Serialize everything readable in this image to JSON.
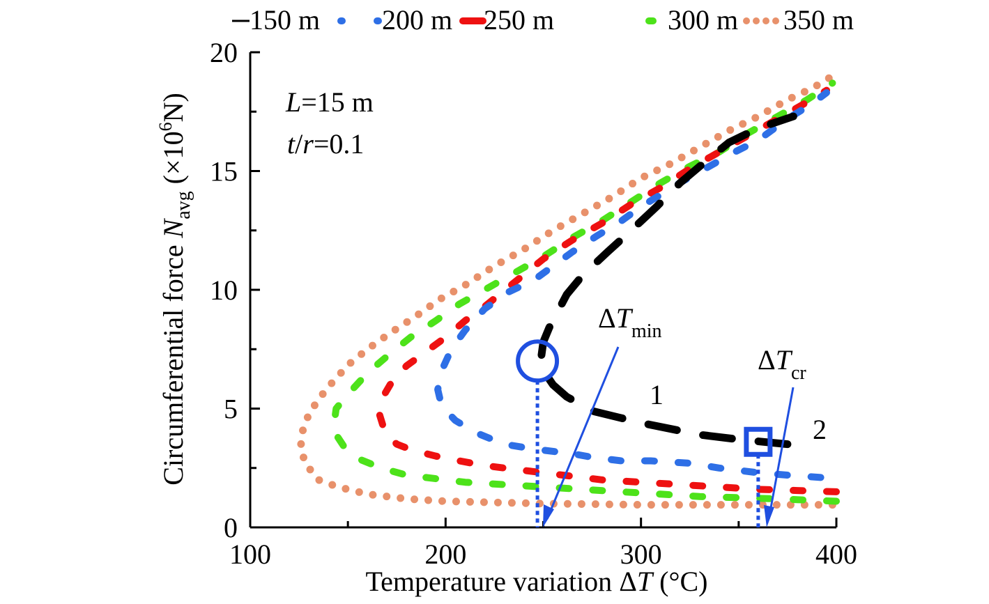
{
  "chart_data": {
    "type": "line",
    "title": "",
    "xlabel": "Temperature variation ΔT (°C)",
    "xlabel_parts": {
      "main": "Temperature variation ",
      "delta": "Δ",
      "var": "T",
      "unit": " (°C)"
    },
    "ylabel": "Circumferential force N_avg (×10^6N)",
    "ylabel_parts": {
      "main": "Circumferential force ",
      "var": "N",
      "sub": "avg",
      "unit_open": " (×10",
      "sup": "6",
      "unit_close": "N)"
    },
    "xlim": [
      100,
      400
    ],
    "ylim": [
      0,
      20
    ],
    "x_ticks": [
      "100",
      "200",
      "300",
      "400"
    ],
    "x_tick_values": [
      100,
      200,
      300,
      400
    ],
    "x_minor_ticks": [
      150,
      250,
      350
    ],
    "y_ticks": [
      "0",
      "5",
      "10",
      "15",
      "20"
    ],
    "y_tick_values": [
      0,
      5,
      10,
      15,
      20
    ],
    "y_minor_ticks": [
      2.5,
      7.5,
      12.5,
      17.5
    ],
    "grid": false,
    "legend_position": "top",
    "series": [
      {
        "name": "150 m",
        "color": "#000000",
        "style": "long-dash",
        "points": [
          [
            375,
            3.5
          ],
          [
            350,
            3.7
          ],
          [
            330,
            3.9
          ],
          [
            300,
            4.4
          ],
          [
            275,
            4.9
          ],
          [
            262,
            5.5
          ],
          [
            255,
            6.0
          ],
          [
            250,
            6.6
          ],
          [
            249,
            7.2
          ],
          [
            250,
            7.8
          ],
          [
            253,
            8.4
          ],
          [
            262,
            9.8
          ],
          [
            270,
            10.6
          ],
          [
            283,
            11.6
          ],
          [
            295,
            12.5
          ],
          [
            308,
            13.5
          ],
          [
            320,
            14.5
          ],
          [
            333,
            15.4
          ],
          [
            345,
            16.2
          ],
          [
            360,
            16.8
          ],
          [
            378,
            17.3
          ]
        ]
      },
      {
        "name": "200 m",
        "color": "#2e6fe6",
        "style": "dash",
        "points": [
          [
            392,
            2.1
          ],
          [
            375,
            2.2
          ],
          [
            360,
            2.3
          ],
          [
            340,
            2.5
          ],
          [
            325,
            2.7
          ],
          [
            305,
            2.8
          ],
          [
            290,
            2.8
          ],
          [
            275,
            2.95
          ],
          [
            265,
            3.1
          ],
          [
            245,
            3.3
          ],
          [
            230,
            3.5
          ],
          [
            215,
            4.0
          ],
          [
            205,
            4.5
          ],
          [
            198,
            5.1
          ],
          [
            196,
            5.8
          ],
          [
            198,
            6.6
          ],
          [
            203,
            7.5
          ],
          [
            210,
            8.3
          ],
          [
            220,
            9.2
          ],
          [
            232,
            9.9
          ],
          [
            245,
            10.4
          ],
          [
            255,
            11.0
          ],
          [
            265,
            11.6
          ],
          [
            278,
            12.3
          ],
          [
            290,
            12.9
          ],
          [
            300,
            13.5
          ],
          [
            310,
            14.0
          ],
          [
            322,
            14.6
          ],
          [
            335,
            15.2
          ],
          [
            348,
            15.8
          ],
          [
            360,
            16.3
          ],
          [
            375,
            17.2
          ],
          [
            387,
            17.8
          ],
          [
            395,
            18.3
          ]
        ]
      },
      {
        "name": "250 m",
        "color": "#ee1111",
        "style": "dash",
        "points": [
          [
            400,
            1.5
          ],
          [
            380,
            1.55
          ],
          [
            360,
            1.6
          ],
          [
            340,
            1.7
          ],
          [
            320,
            1.8
          ],
          [
            300,
            1.9
          ],
          [
            280,
            2.0
          ],
          [
            265,
            2.15
          ],
          [
            250,
            2.3
          ],
          [
            235,
            2.45
          ],
          [
            220,
            2.6
          ],
          [
            207,
            2.8
          ],
          [
            195,
            3.0
          ],
          [
            183,
            3.25
          ],
          [
            175,
            3.5
          ],
          [
            169,
            4.0
          ],
          [
            166,
            4.8
          ],
          [
            168,
            5.5
          ],
          [
            173,
            6.2
          ],
          [
            180,
            6.8
          ],
          [
            190,
            7.4
          ],
          [
            200,
            8.0
          ],
          [
            210,
            8.7
          ],
          [
            220,
            9.3
          ],
          [
            235,
            10.3
          ],
          [
            250,
            11.3
          ],
          [
            265,
            12.1
          ],
          [
            280,
            12.8
          ],
          [
            295,
            13.6
          ],
          [
            310,
            14.3
          ],
          [
            325,
            15.1
          ],
          [
            340,
            15.8
          ],
          [
            355,
            16.5
          ],
          [
            370,
            17.2
          ],
          [
            385,
            17.9
          ],
          [
            395,
            18.4
          ]
        ]
      },
      {
        "name": "300 m",
        "color": "#4de21a",
        "color2": "#5ef06a",
        "style": "dash",
        "points": [
          [
            400,
            1.1
          ],
          [
            385,
            1.15
          ],
          [
            370,
            1.2
          ],
          [
            350,
            1.25
          ],
          [
            330,
            1.3
          ],
          [
            310,
            1.4
          ],
          [
            290,
            1.5
          ],
          [
            270,
            1.6
          ],
          [
            250,
            1.7
          ],
          [
            230,
            1.8
          ],
          [
            210,
            1.9
          ],
          [
            195,
            2.05
          ],
          [
            180,
            2.2
          ],
          [
            167,
            2.5
          ],
          [
            155,
            2.9
          ],
          [
            148,
            3.4
          ],
          [
            144,
            3.9
          ],
          [
            143,
            4.4
          ],
          [
            144,
            5.0
          ],
          [
            150,
            5.6
          ],
          [
            160,
            6.5
          ],
          [
            170,
            7.2
          ],
          [
            182,
            8.0
          ],
          [
            195,
            8.7
          ],
          [
            207,
            9.4
          ],
          [
            220,
            10.0
          ],
          [
            235,
            10.7
          ],
          [
            250,
            11.4
          ],
          [
            265,
            12.2
          ],
          [
            280,
            12.9
          ],
          [
            295,
            13.7
          ],
          [
            310,
            14.5
          ],
          [
            325,
            15.2
          ],
          [
            340,
            15.8
          ],
          [
            355,
            16.6
          ],
          [
            370,
            17.3
          ],
          [
            385,
            18.0
          ],
          [
            398,
            18.7
          ]
        ]
      },
      {
        "name": "350 m",
        "color": "#e8916b",
        "style": "dot",
        "points": [
          [
            398,
            0.95
          ],
          [
            375,
            0.95
          ],
          [
            350,
            0.95
          ],
          [
            325,
            0.95
          ],
          [
            300,
            0.95
          ],
          [
            275,
            0.98
          ],
          [
            250,
            1.0
          ],
          [
            225,
            1.05
          ],
          [
            200,
            1.1
          ],
          [
            180,
            1.2
          ],
          [
            160,
            1.4
          ],
          [
            145,
            1.7
          ],
          [
            135,
            2.0
          ],
          [
            129,
            2.6
          ],
          [
            126,
            3.2
          ],
          [
            126,
            3.8
          ],
          [
            128,
            4.4
          ],
          [
            131,
            4.9
          ],
          [
            136,
            5.5
          ],
          [
            143,
            6.2
          ],
          [
            151,
            6.9
          ],
          [
            160,
            7.5
          ],
          [
            172,
            8.2
          ],
          [
            185,
            8.9
          ],
          [
            197,
            9.6
          ],
          [
            210,
            10.2
          ],
          [
            225,
            11.0
          ],
          [
            240,
            11.7
          ],
          [
            255,
            12.5
          ],
          [
            270,
            13.2
          ],
          [
            285,
            13.9
          ],
          [
            300,
            14.7
          ],
          [
            315,
            15.3
          ],
          [
            330,
            16.0
          ],
          [
            345,
            16.7
          ],
          [
            360,
            17.3
          ],
          [
            375,
            18.0
          ],
          [
            388,
            18.5
          ],
          [
            398,
            19.0
          ]
        ]
      }
    ],
    "annotations": {
      "params_line1": {
        "var": "L",
        "text": "=15 m"
      },
      "params_line2": {
        "var1": "t",
        "slash": "/",
        "var2": "r",
        "text": "=0.1"
      },
      "dt_min": {
        "delta": "Δ",
        "var": "T",
        "sub": "min",
        "x_value": 247,
        "marker_y_value": 7.0
      },
      "dt_cr": {
        "delta": "Δ",
        "var": "T",
        "sub": "cr",
        "x_value": 360,
        "marker_y_value": 3.6
      },
      "label_1": "1",
      "label_2": "2",
      "annotation_color": "#1f4fe0"
    }
  }
}
